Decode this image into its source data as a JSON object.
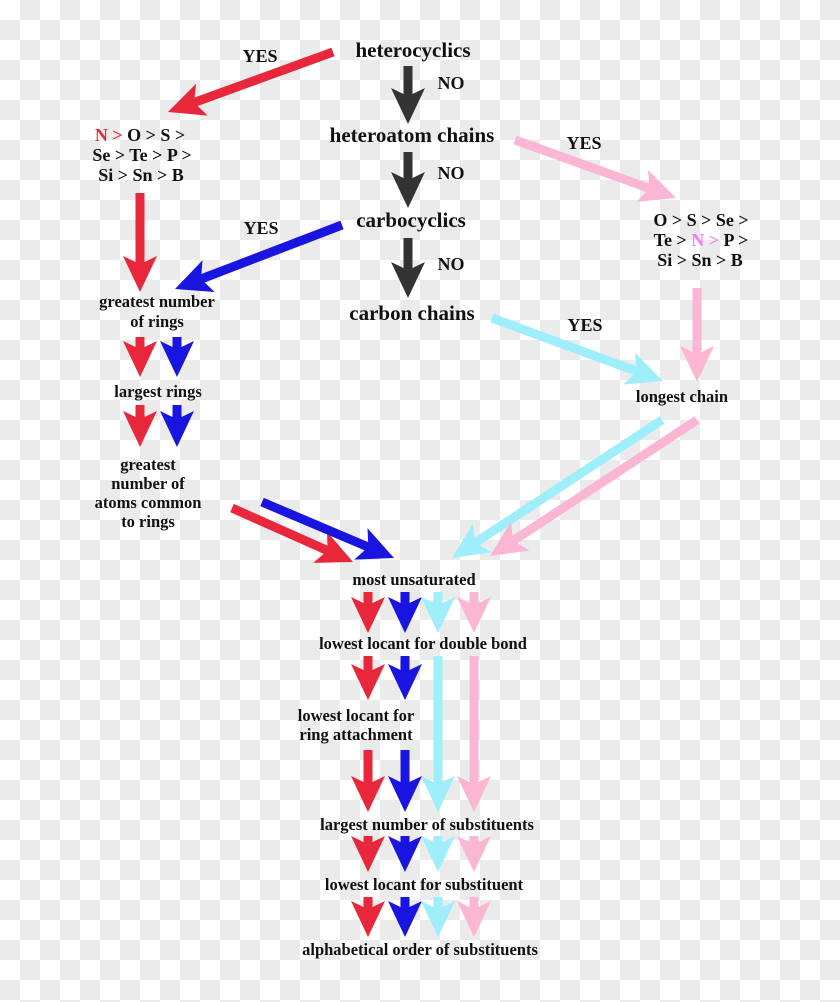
{
  "colors": {
    "heterocyclic": "#e8283a",
    "carbocyclic": "#1a14e0",
    "carbon_chain": "#9eeefc",
    "heteroatom_chain": "#fbb6d4",
    "decision": "#333333",
    "highlight_red": "#e8283a",
    "highlight_pink": "#f07cf0"
  },
  "decisions": {
    "heterocyclics": "heterocyclics",
    "heteroatom_chains": "heteroatom chains",
    "carbocyclics": "carbocyclics",
    "carbon_chains": "carbon chains"
  },
  "labels": {
    "yes": "YES",
    "no": "NO"
  },
  "left_priority": {
    "n": "N >",
    "line1_rest": " O > S >",
    "line2": "Se > Te > P >",
    "line3": "Si > Sn > B"
  },
  "right_priority": {
    "line1": "O > S > Se >",
    "line2_pre": "Te > ",
    "n": "N >",
    "line2_post": " P >",
    "line3": "Si > Sn > B"
  },
  "ring_criteria": {
    "greatest_rings_1": "greatest number",
    "greatest_rings_2": "of rings",
    "largest_rings": "largest rings",
    "common_1": "greatest",
    "common_2": "number of",
    "common_3": "atoms common",
    "common_4": "to rings"
  },
  "chain_criteria": {
    "longest_chain": "longest chain"
  },
  "common_criteria": {
    "most_unsaturated": "most unsaturated",
    "double_bond": "lowest locant for double bond",
    "ring_attach_1": "lowest locant for",
    "ring_attach_2": "ring attachment",
    "largest_substituents": "largest number of substituents",
    "lowest_substituent": "lowest locant for substituent",
    "alphabetical": "alphabetical order of substituents"
  }
}
